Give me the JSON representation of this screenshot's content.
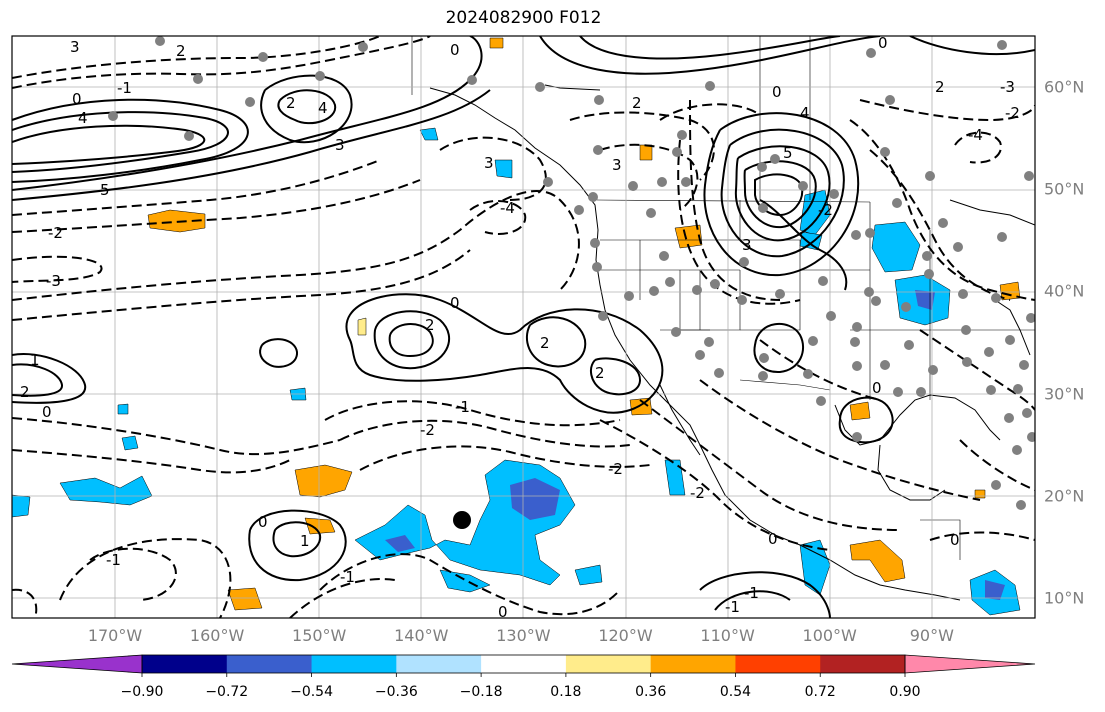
{
  "title": "2024082900 F012",
  "longitude_labels": [
    "170°W",
    "160°W",
    "150°W",
    "140°W",
    "130°W",
    "120°W",
    "110°W",
    "100°W",
    "90°W"
  ],
  "latitude_labels": [
    "60°N",
    "50°N",
    "40°N",
    "30°N",
    "20°N",
    "10°N"
  ],
  "colorbar": {
    "ticks": [
      "−0.90",
      "−0.72",
      "−0.54",
      "−0.36",
      "−0.18",
      "0.18",
      "0.36",
      "0.54",
      "0.72",
      "0.90"
    ],
    "colors": [
      "#9932CC",
      "#00008B",
      "#3A5FCD",
      "#00BFFF",
      "#B0E2FF",
      "#FFFFFF",
      "#FFEC8B",
      "#FFA500",
      "#FF4000",
      "#B22222",
      "#FF88AA"
    ]
  },
  "contour_labels": [
    "3",
    "2",
    "0",
    "-1",
    "4",
    "5",
    "2",
    "3",
    "0",
    "-2",
    "-3",
    "4",
    "3",
    "0",
    "-4",
    "2",
    "-3",
    "2",
    "0",
    "-2",
    "0",
    "5",
    "3",
    "-4",
    "-2",
    "2",
    "1",
    "-1",
    "2",
    "-2",
    "0",
    "0",
    "-1",
    "-2",
    "-1",
    "0",
    "-2",
    "-1",
    "0",
    "1",
    "0",
    "-1",
    "0",
    "2",
    "3",
    "4",
    "2"
  ]
}
